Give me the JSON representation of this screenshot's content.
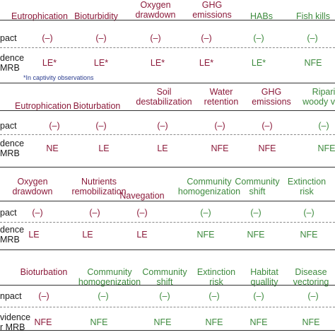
{
  "colors": {
    "negative_effect": "#8b1a3a",
    "positive_effect": "#3d8a3d",
    "note": "#2b3d8f"
  },
  "panels": [
    {
      "headers": [
        {
          "lines": [
            "Eutrophication"
          ],
          "tone": "neg"
        },
        {
          "lines": [
            "Bioturbidity"
          ],
          "tone": "neg"
        },
        {
          "lines": [
            "Oxygen",
            "drawdown"
          ],
          "tone": "neg"
        },
        {
          "lines": [
            "GHG",
            "emissions"
          ],
          "tone": "neg"
        },
        {
          "lines": [
            "HABs"
          ],
          "tone": "pos"
        },
        {
          "lines": [
            "Fish kills"
          ],
          "tone": "pos"
        }
      ],
      "impact_label": "pact",
      "impact": [
        "(–)",
        "(–)",
        "(–)",
        "(–)",
        "(–)",
        "(–)"
      ],
      "evidence_label": [
        "dence",
        "MRB"
      ],
      "evidence": [
        "LE*",
        "LE*",
        "LE*",
        "LE*",
        "LE*",
        "NFE"
      ],
      "note": "*In captivity observations"
    },
    {
      "headers": [
        {
          "lines": [
            "Eutrophication"
          ],
          "tone": "neg"
        },
        {
          "lines": [
            "Bioturbation"
          ],
          "tone": "neg"
        },
        {
          "lines": [
            "Soil",
            "destabilization"
          ],
          "tone": "neg"
        },
        {
          "lines": [
            "Water",
            "retention"
          ],
          "tone": "neg"
        },
        {
          "lines": [
            "GHG",
            "emissions"
          ],
          "tone": "neg"
        },
        {
          "lines": [
            "Ripari",
            "woody veg"
          ],
          "tone": "pos"
        }
      ],
      "impact_label": "pact",
      "impact": [
        "(–)",
        "(–)",
        "(–)",
        "(–)",
        "(–)",
        "(–)"
      ],
      "evidence_label": [
        "dence",
        "MRB"
      ],
      "evidence": [
        "NE",
        "LE",
        "LE",
        "NFE",
        "NFE",
        "NFE"
      ]
    },
    {
      "headers": [
        {
          "lines": [
            "Oxygen",
            "drawdown"
          ],
          "tone": "neg"
        },
        {
          "lines": [
            "Nutrients",
            "remobilization"
          ],
          "tone": "neg"
        },
        {
          "lines": [
            "Navegation"
          ],
          "tone": "neg"
        },
        {
          "lines": [
            "Community",
            "homogenization"
          ],
          "tone": "pos"
        },
        {
          "lines": [
            "Community",
            "shift"
          ],
          "tone": "pos"
        },
        {
          "lines": [
            "Extinction",
            "risk"
          ],
          "tone": "pos"
        }
      ],
      "impact_label": "pact",
      "impact": [
        "(–)",
        "(–)",
        "(–)",
        "(–)",
        "(–)",
        "(–)"
      ],
      "evidence_label": [
        "dence",
        "MRB"
      ],
      "evidence": [
        "LE",
        "LE",
        "LE",
        "NFE",
        "NFE",
        "NFE"
      ]
    },
    {
      "headers": [
        {
          "lines": [
            "Bioturbation"
          ],
          "tone": "neg"
        },
        {
          "lines": [
            "Community",
            "homogenization"
          ],
          "tone": "pos"
        },
        {
          "lines": [
            "Community",
            "shift"
          ],
          "tone": "pos"
        },
        {
          "lines": [
            "Extinction",
            "risk"
          ],
          "tone": "pos"
        },
        {
          "lines": [
            "Habitat",
            "quallity"
          ],
          "tone": "pos"
        },
        {
          "lines": [
            "Disease",
            "vectoring"
          ],
          "tone": "pos"
        }
      ],
      "impact_label": "npact",
      "impact": [
        "(–)",
        "(–)",
        "(–)",
        "(–)",
        "(–)",
        "(–)"
      ],
      "evidence_label": [
        "vidence",
        "r MRB"
      ],
      "evidence": [
        "NFE",
        "NFE",
        "NFE",
        "NFE",
        "NFE",
        "NFE"
      ]
    }
  ]
}
